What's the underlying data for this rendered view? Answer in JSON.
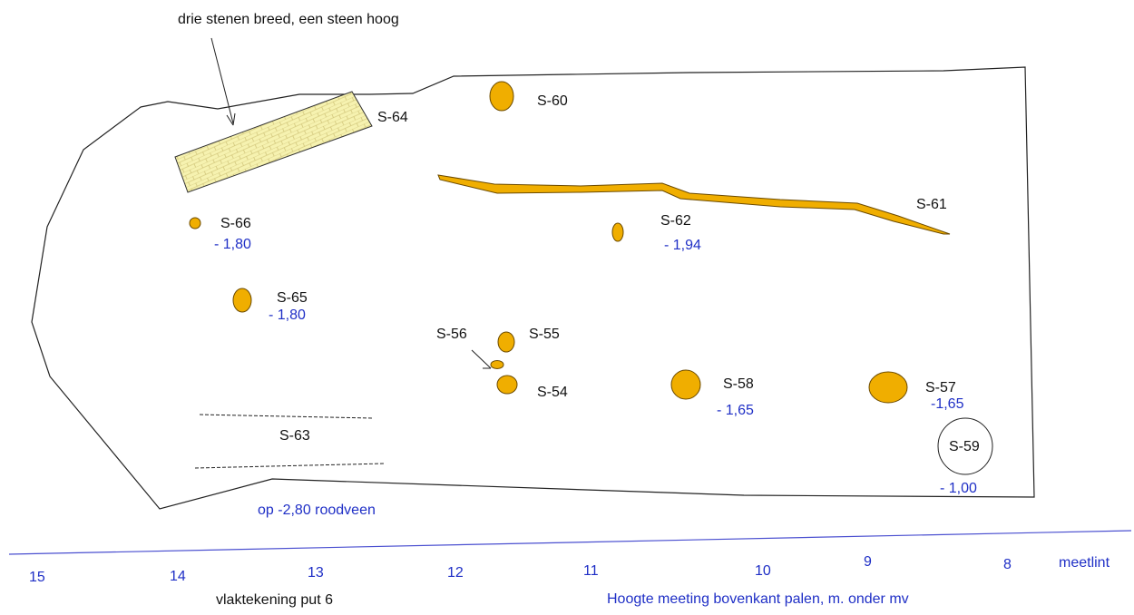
{
  "annotation": "drie stenen breed, een steen hoog",
  "features": {
    "s60": {
      "label": "S-60"
    },
    "s64": {
      "label": "S-64"
    },
    "s61": {
      "label": "S-61"
    },
    "s62": {
      "label": "S-62",
      "depth": "- 1,94"
    },
    "s66": {
      "label": "S-66",
      "depth": "- 1,80"
    },
    "s65": {
      "label": "S-65",
      "depth": "- 1,80"
    },
    "s56": {
      "label": "S-56"
    },
    "s55": {
      "label": "S-55"
    },
    "s54": {
      "label": "S-54"
    },
    "s58": {
      "label": "S-58",
      "depth": "- 1,65"
    },
    "s57": {
      "label": "S-57",
      "depth": "-1,65"
    },
    "s59": {
      "label": "S-59",
      "depth": "- 1,00"
    },
    "s63": {
      "label": "S-63"
    }
  },
  "bottom_note": "op -2,80 roodveen",
  "measuring_tape": {
    "ticks": [
      "15",
      "14",
      "13",
      "12",
      "11",
      "10",
      "9",
      "8"
    ],
    "label": "meetlint"
  },
  "caption_left": "vlaktekening put 6",
  "caption_right": "Hoogte meeting bovenkant palen, m. onder mv",
  "colors": {
    "feature_fill": "#f0ae00",
    "brick_fill": "#f6f2b0",
    "depth_text": "#1f2fc6"
  }
}
